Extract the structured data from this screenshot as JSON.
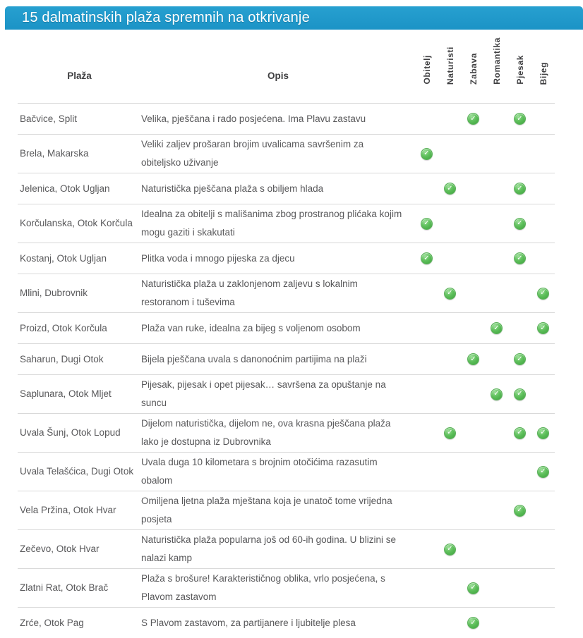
{
  "title_bar": {
    "title": "15 dalmatinskih plaža spremnih na otkrivanje",
    "bg_color": "#1f99c9",
    "text_color": "#ffffff"
  },
  "table": {
    "headers": {
      "beach": "Plaža",
      "description": "Opis"
    },
    "tag_columns": [
      "Obitelj",
      "Naturisti",
      "Zabava",
      "Romantika",
      "Pjesak",
      "Bijeg"
    ],
    "check_icon": {
      "glyph": "✓",
      "color": "#4caf50"
    },
    "border_color": "#d9d9d9",
    "rows": [
      {
        "beach": "Bačvice, Split",
        "description": "Velika, pješčana i rado posjećena. Ima Plavu zastavu",
        "checks": [
          false,
          false,
          true,
          false,
          true,
          false
        ]
      },
      {
        "beach": "Brela, Makarska",
        "description": "Veliki zaljev prošaran brojim uvalicama savršenim za obiteljsko uživanje",
        "checks": [
          true,
          false,
          false,
          false,
          false,
          false
        ]
      },
      {
        "beach": "Jelenica, Otok Ugljan",
        "description": "Naturistička pješčana plaža s obiljem hlada",
        "checks": [
          false,
          true,
          false,
          false,
          true,
          false
        ]
      },
      {
        "beach": "Korčulanska, Otok Korčula",
        "description": "Idealna za obitelji s mališanima zbog prostranog plićaka kojim mogu gaziti i skakutati",
        "checks": [
          true,
          false,
          false,
          false,
          true,
          false
        ]
      },
      {
        "beach": "Kostanj, Otok Ugljan",
        "description": "Plitka voda i mnogo pijeska za djecu",
        "checks": [
          true,
          false,
          false,
          false,
          true,
          false
        ]
      },
      {
        "beach": "Mlini, Dubrovnik",
        "description": "Naturistička plaža u zaklonjenom zaljevu s lokalnim restoranom i tuševima",
        "checks": [
          false,
          true,
          false,
          false,
          false,
          true
        ]
      },
      {
        "beach": "Proizd, Otok Korčula",
        "description": "Plaža van ruke, idealna za bijeg s voljenom osobom",
        "checks": [
          false,
          false,
          false,
          true,
          false,
          true
        ]
      },
      {
        "beach": "Saharun, Dugi Otok",
        "description": "Bijela pješčana uvala s danonoćnim partijima na plaži",
        "checks": [
          false,
          false,
          true,
          false,
          true,
          false
        ]
      },
      {
        "beach": "Saplunara, Otok Mljet",
        "description": "Pijesak, pijesak i opet pijesak… savršena za opuštanje na suncu",
        "checks": [
          false,
          false,
          false,
          true,
          true,
          false
        ]
      },
      {
        "beach": "Uvala Šunj, Otok Lopud",
        "description": "Dijelom naturistička, dijelom ne, ova krasna pješčana plaža lako je dostupna iz Dubrovnika",
        "checks": [
          false,
          true,
          false,
          false,
          true,
          true
        ]
      },
      {
        "beach": "Uvala Telašćica, Dugi Otok",
        "description": "Uvala duga 10 kilometara s brojnim otočićima razasutim obalom",
        "checks": [
          false,
          false,
          false,
          false,
          false,
          true
        ]
      },
      {
        "beach": "Vela Pržina, Otok Hvar",
        "description": "Omiljena ljetna plaža mještana koja je unatoč tome vrijedna posjeta",
        "checks": [
          false,
          false,
          false,
          false,
          true,
          false
        ]
      },
      {
        "beach": "Zečevo, Otok Hvar",
        "description": "Naturistička plaža popularna još od 60-ih godina. U blizini se nalazi kamp",
        "checks": [
          false,
          true,
          false,
          false,
          false,
          false
        ]
      },
      {
        "beach": "Zlatni Rat, Otok Brač",
        "description": "Plaža s brošure! Karakterističnog oblika, vrlo posjećena, s Plavom zastavom",
        "checks": [
          false,
          false,
          true,
          false,
          false,
          false
        ]
      },
      {
        "beach": "Zrće, Otok Pag",
        "description": "S Plavom zastavom, za partijanere i ljubitelje plesa",
        "checks": [
          false,
          false,
          true,
          false,
          false,
          false
        ]
      }
    ]
  }
}
